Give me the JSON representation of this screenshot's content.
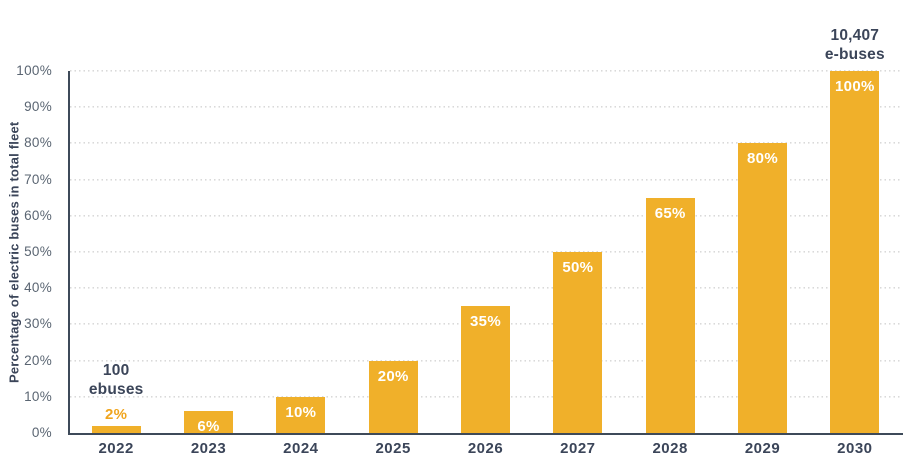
{
  "chart_data": {
    "type": "bar",
    "title": "",
    "xlabel": "",
    "ylabel": "Percentage of electric buses in total fleet",
    "categories": [
      "2022",
      "2023",
      "2024",
      "2025",
      "2026",
      "2027",
      "2028",
      "2029",
      "2030"
    ],
    "values": [
      2,
      6,
      10,
      20,
      35,
      50,
      65,
      80,
      100
    ],
    "bar_labels": [
      "2%",
      "6%",
      "10%",
      "20%",
      "35%",
      "50%",
      "65%",
      "80%",
      "100%"
    ],
    "ylim": [
      0,
      100
    ],
    "ytick_step": 10,
    "yticks": [
      "0%",
      "10%",
      "20%",
      "30%",
      "40%",
      "50%",
      "60%",
      "70%",
      "80%",
      "90%",
      "100%"
    ],
    "grid": "horizontal-dotted",
    "legend": "none",
    "annotations": [
      {
        "category": "2022",
        "lines": [
          "100",
          "ebuses"
        ]
      },
      {
        "category": "2030",
        "lines": [
          "10,407",
          "e-buses"
        ]
      }
    ],
    "outside_label_categories": [
      "2022"
    ]
  },
  "colors": {
    "bar": "#F0B02A",
    "bar_label_inside": "#FFFFFF",
    "bar_label_outside": "#F0A51E",
    "axis": "#3E4A59",
    "dark_text": "#3B4559",
    "tick_text": "#5A6572",
    "gridline": "#D9D9D9",
    "background": "#FFFFFF"
  }
}
